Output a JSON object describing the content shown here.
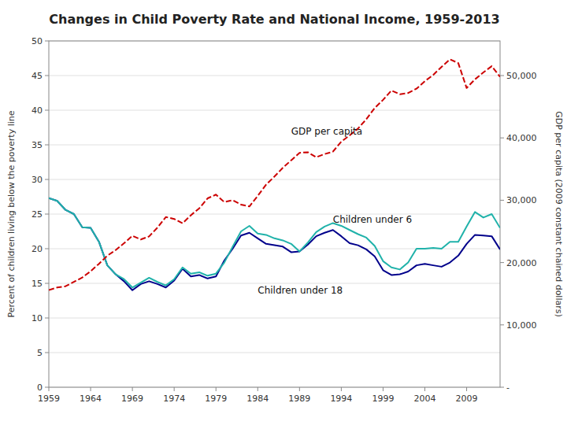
{
  "chart_data": {
    "type": "line",
    "title": "Changes in Child Poverty Rate and National Income, 1959-2013",
    "y_label": "Percent of children living below the poverty line",
    "y2_label": "GDP per capita (2009 constant chained dollars)",
    "x": [
      1959,
      1960,
      1961,
      1962,
      1963,
      1964,
      1965,
      1966,
      1967,
      1968,
      1969,
      1970,
      1971,
      1972,
      1973,
      1974,
      1975,
      1976,
      1977,
      1978,
      1979,
      1980,
      1981,
      1982,
      1983,
      1984,
      1985,
      1986,
      1987,
      1988,
      1989,
      1990,
      1991,
      1992,
      1993,
      1994,
      1995,
      1996,
      1997,
      1998,
      1999,
      2000,
      2001,
      2002,
      2003,
      2004,
      2005,
      2006,
      2007,
      2008,
      2009,
      2010,
      2011,
      2012,
      2013
    ],
    "series": [
      {
        "color": "#00008B",
        "line_style": "solid",
        "values": [
          27.3,
          26.9,
          25.6,
          25.0,
          23.1,
          23.0,
          21.0,
          17.6,
          16.3,
          15.3,
          14.0,
          14.9,
          15.3,
          14.9,
          14.4,
          15.4,
          17.1,
          16.0,
          16.2,
          15.7,
          16.0,
          18.3,
          20.0,
          21.9,
          22.3,
          21.5,
          20.7,
          20.5,
          20.3,
          19.5,
          19.6,
          20.6,
          21.8,
          22.3,
          22.7,
          21.8,
          20.8,
          20.5,
          19.9,
          18.9,
          16.9,
          16.2,
          16.3,
          16.7,
          17.6,
          17.8,
          17.6,
          17.4,
          18.0,
          19.0,
          20.7,
          22.0,
          21.9,
          21.8,
          19.9
        ]
      },
      {
        "color": "#20B2AA",
        "line_style": "solid",
        "values": [
          27.3,
          26.9,
          25.6,
          25.0,
          23.1,
          23.0,
          21.0,
          17.6,
          16.3,
          15.6,
          14.4,
          15.1,
          15.8,
          15.2,
          14.7,
          15.6,
          17.3,
          16.4,
          16.6,
          16.1,
          16.4,
          18.0,
          20.3,
          22.5,
          23.3,
          22.2,
          22.0,
          21.5,
          21.2,
          20.7,
          19.6,
          20.9,
          22.4,
          23.2,
          23.7,
          23.3,
          22.7,
          22.1,
          21.6,
          20.4,
          18.2,
          17.3,
          17.0,
          18.0,
          20.0,
          20.0,
          20.1,
          20.0,
          21.0,
          21.0,
          23.2,
          25.3,
          24.5,
          25.0,
          23.0
        ]
      },
      {
        "color": "#CC0000",
        "line_style": "dashed",
        "axis": "y2",
        "values": [
          15600,
          16000,
          16200,
          16900,
          17600,
          18600,
          19800,
          21100,
          22000,
          23100,
          24300,
          23700,
          24200,
          25600,
          27300,
          27000,
          26300,
          27600,
          28700,
          30300,
          30900,
          29700,
          30000,
          29300,
          29000,
          30700,
          32500,
          33800,
          35200,
          36400,
          37600,
          37700,
          36900,
          37400,
          37800,
          39400,
          40400,
          41500,
          43000,
          44800,
          46100,
          47600,
          47000,
          47200,
          47900,
          49100,
          50100,
          51400,
          52600,
          52000,
          48000,
          49400,
          50500,
          51500,
          49800
        ]
      }
    ],
    "xlim": [
      1959,
      2013
    ],
    "xticks": [
      1959,
      1964,
      1969,
      1974,
      1979,
      1984,
      1989,
      1994,
      1999,
      2004,
      2009
    ],
    "ylim": [
      0,
      50
    ],
    "yticks": [
      0,
      5,
      10,
      15,
      20,
      25,
      30,
      35,
      40,
      45,
      50
    ],
    "y2lim": [
      0,
      55556
    ],
    "y2ticks": [
      {
        "value": 0,
        "label": "-"
      },
      {
        "value": 10000,
        "label": "10,000"
      },
      {
        "value": 20000,
        "label": "20,000"
      },
      {
        "value": 30000,
        "label": "30,000"
      },
      {
        "value": 40000,
        "label": "40,000"
      },
      {
        "value": 50000,
        "label": "50,000"
      }
    ],
    "grid": true,
    "annotations": [
      {
        "text": "GDP per capita",
        "x": 1988,
        "y": 36.5
      },
      {
        "text": "Children under 6",
        "x": 1993,
        "y": 23.8
      },
      {
        "text": "Children under 18",
        "x": 1984,
        "y": 13.5
      }
    ]
  }
}
